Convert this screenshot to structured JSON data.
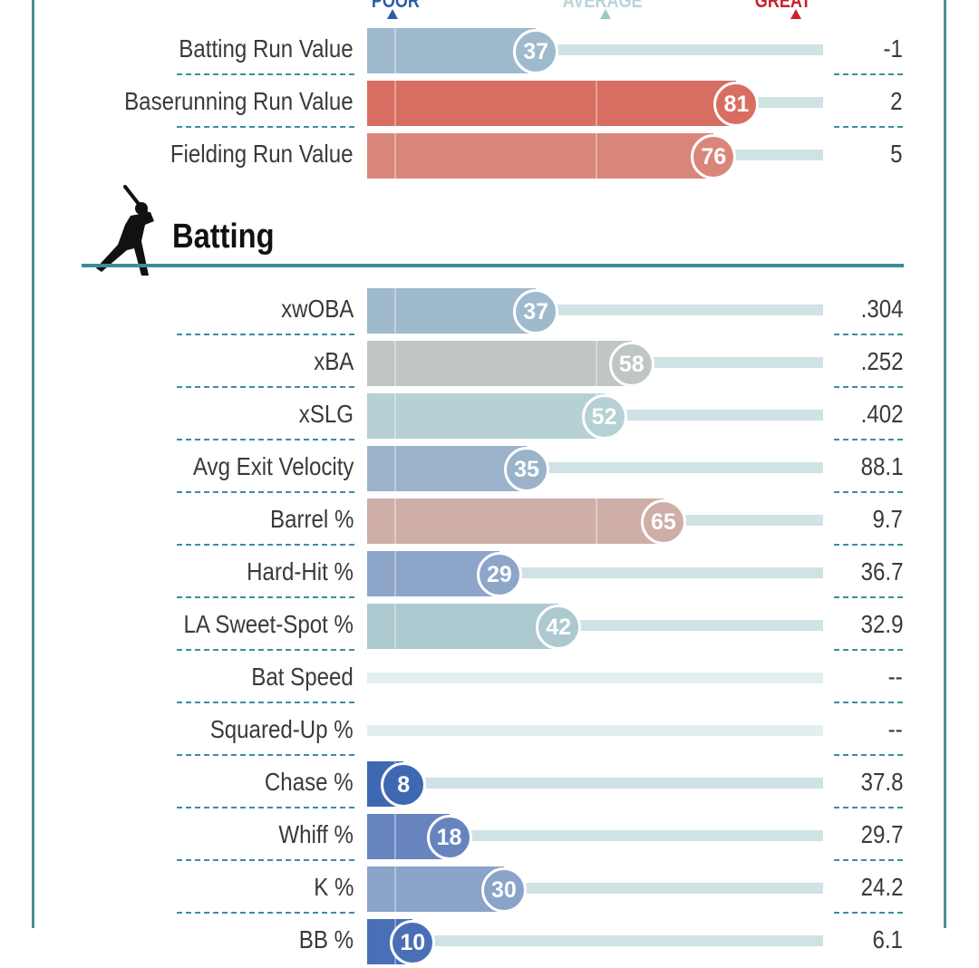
{
  "legend": {
    "poor": "POOR",
    "average": "AVERAGE",
    "great": "GREAT"
  },
  "colors": {
    "border": "#4a8f96",
    "track": "#cfe2e4",
    "poor_marker": "#2d5da8",
    "avg_marker": "#9ec7cb",
    "great_marker": "#c8232c"
  },
  "summary_rows": [
    {
      "label": "Batting Run Value",
      "percentile": 37,
      "value": "-1",
      "color": "#9fb9cd"
    },
    {
      "label": "Baserunning Run Value",
      "percentile": 81,
      "value": "2",
      "color": "#d86e62"
    },
    {
      "label": "Fielding Run Value",
      "percentile": 76,
      "value": "5",
      "color": "#d9867a"
    }
  ],
  "batting_section": {
    "title": "Batting",
    "icon": "batter-silhouette-icon"
  },
  "batting_rows": [
    {
      "label": "xwOBA",
      "percentile": 37,
      "value": ".304",
      "color": "#9fb9cd"
    },
    {
      "label": "xBA",
      "percentile": 58,
      "value": ".252",
      "color": "#c0c6c6"
    },
    {
      "label": "xSLG",
      "percentile": 52,
      "value": ".402",
      "color": "#b6d1d5"
    },
    {
      "label": "Avg Exit Velocity",
      "percentile": 35,
      "value": "88.1",
      "color": "#9ab3cb"
    },
    {
      "label": "Barrel %",
      "percentile": 65,
      "value": "9.7",
      "color": "#cfaea7"
    },
    {
      "label": "Hard-Hit %",
      "percentile": 29,
      "value": "36.7",
      "color": "#8ca5c9"
    },
    {
      "label": "LA Sweet-Spot %",
      "percentile": 42,
      "value": "32.9",
      "color": "#adc9d0"
    },
    {
      "label": "Bat Speed",
      "percentile": null,
      "value": "--",
      "color": ""
    },
    {
      "label": "Squared-Up %",
      "percentile": null,
      "value": "--",
      "color": ""
    },
    {
      "label": "Chase %",
      "percentile": 8,
      "value": "37.8",
      "color": "#3f68b3"
    },
    {
      "label": "Whiff %",
      "percentile": 18,
      "value": "29.7",
      "color": "#6784bf"
    },
    {
      "label": "K %",
      "percentile": 30,
      "value": "24.2",
      "color": "#8aa3c8"
    },
    {
      "label": "BB %",
      "percentile": 10,
      "value": "6.1",
      "color": "#4a6fb6"
    }
  ]
}
